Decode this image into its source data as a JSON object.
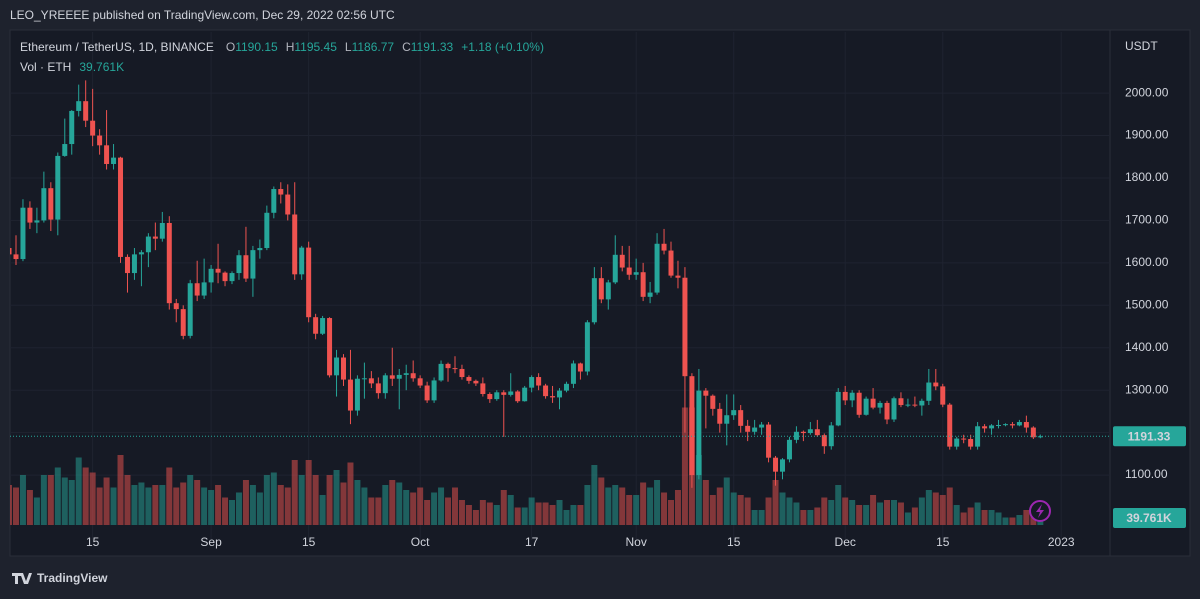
{
  "header": {
    "publisher": "LEO_YREEEE published on TradingView.com, Dec 29, 2022 02:56 UTC"
  },
  "chart_data": {
    "type": "candlestick",
    "symbol": "Ethereum / TetherUS, 1D, BINANCE",
    "legend_labels": [
      "O",
      "H",
      "L",
      "C"
    ],
    "change": "+1.18 (+0.10%)",
    "volume_title": "Vol · ETH",
    "volume_last_label": "39.761K",
    "currency": "USDT",
    "up_color": "#26a69a",
    "down_color": "#ef5350",
    "grid": true,
    "ylim": [
      947,
      2144
    ],
    "yticks": [
      {
        "value": 1100,
        "label": "1100.00"
      },
      {
        "value": 1200,
        "label": "1200.00"
      },
      {
        "value": 1300,
        "label": "1300.00"
      },
      {
        "value": 1400,
        "label": "1400.00"
      },
      {
        "value": 1500,
        "label": "1500.00"
      },
      {
        "value": 1600,
        "label": "1600.00"
      },
      {
        "value": 1700,
        "label": "1700.00"
      },
      {
        "value": 1800,
        "label": "1800.00"
      },
      {
        "value": 1900,
        "label": "1900.00"
      },
      {
        "value": 2000,
        "label": "2000.00"
      }
    ],
    "xlim": [
      0.14,
      158
    ],
    "xticks": [
      {
        "value": 12,
        "label": "15"
      },
      {
        "value": 29,
        "label": "Sep"
      },
      {
        "value": 43,
        "label": "15"
      },
      {
        "value": 59,
        "label": "Oct"
      },
      {
        "value": 75,
        "label": "17"
      },
      {
        "value": 90,
        "label": "Nov"
      },
      {
        "value": 104,
        "label": "15"
      },
      {
        "value": 120,
        "label": "Dec"
      },
      {
        "value": 134,
        "label": "15"
      },
      {
        "value": 151,
        "label": "2023"
      }
    ],
    "volume_lim": [
      0,
      1000000
    ],
    "candles": [
      [
        1635,
        1660,
        1605,
        1620
      ],
      [
        1620,
        1665,
        1595,
        1609
      ],
      [
        1609,
        1750,
        1604,
        1730
      ],
      [
        1730,
        1745,
        1680,
        1695
      ],
      [
        1695,
        1730,
        1670,
        1700
      ],
      [
        1700,
        1815,
        1695,
        1776
      ],
      [
        1776,
        1790,
        1675,
        1702
      ],
      [
        1702,
        1860,
        1665,
        1852
      ],
      [
        1852,
        1940,
        1850,
        1880
      ],
      [
        1880,
        1960,
        1855,
        1958
      ],
      [
        1958,
        2020,
        1945,
        1981
      ],
      [
        1981,
        2030,
        1920,
        1935
      ],
      [
        1935,
        2010,
        1875,
        1900
      ],
      [
        1900,
        1915,
        1855,
        1877
      ],
      [
        1877,
        1960,
        1820,
        1833
      ],
      [
        1833,
        1880,
        1820,
        1848
      ],
      [
        1848,
        1850,
        1600,
        1614
      ],
      [
        1614,
        1620,
        1530,
        1576
      ],
      [
        1576,
        1635,
        1560,
        1620
      ],
      [
        1620,
        1630,
        1545,
        1625
      ],
      [
        1625,
        1670,
        1590,
        1662
      ],
      [
        1662,
        1695,
        1630,
        1657
      ],
      [
        1657,
        1720,
        1650,
        1694
      ],
      [
        1694,
        1710,
        1490,
        1505
      ],
      [
        1505,
        1515,
        1460,
        1491
      ],
      [
        1491,
        1500,
        1420,
        1428
      ],
      [
        1428,
        1560,
        1422,
        1552
      ],
      [
        1552,
        1605,
        1510,
        1523
      ],
      [
        1523,
        1610,
        1515,
        1554
      ],
      [
        1554,
        1595,
        1530,
        1586
      ],
      [
        1586,
        1645,
        1552,
        1577
      ],
      [
        1577,
        1580,
        1545,
        1557
      ],
      [
        1557,
        1580,
        1550,
        1576
      ],
      [
        1576,
        1630,
        1560,
        1618
      ],
      [
        1618,
        1685,
        1555,
        1563
      ],
      [
        1563,
        1640,
        1520,
        1630
      ],
      [
        1630,
        1655,
        1610,
        1635
      ],
      [
        1635,
        1735,
        1630,
        1718
      ],
      [
        1718,
        1780,
        1705,
        1774
      ],
      [
        1774,
        1790,
        1740,
        1761
      ],
      [
        1761,
        1785,
        1700,
        1714
      ],
      [
        1714,
        1790,
        1560,
        1573
      ],
      [
        1573,
        1640,
        1560,
        1636
      ],
      [
        1636,
        1650,
        1460,
        1472
      ],
      [
        1472,
        1480,
        1420,
        1433
      ],
      [
        1433,
        1475,
        1430,
        1470
      ],
      [
        1470,
        1472,
        1330,
        1335
      ],
      [
        1335,
        1395,
        1285,
        1377
      ],
      [
        1377,
        1385,
        1310,
        1325
      ],
      [
        1325,
        1395,
        1220,
        1252
      ],
      [
        1252,
        1335,
        1240,
        1327
      ],
      [
        1327,
        1365,
        1280,
        1328
      ],
      [
        1328,
        1345,
        1305,
        1316
      ],
      [
        1316,
        1330,
        1280,
        1293
      ],
      [
        1293,
        1340,
        1280,
        1335
      ],
      [
        1335,
        1400,
        1310,
        1327
      ],
      [
        1327,
        1350,
        1255,
        1336
      ],
      [
        1336,
        1360,
        1300,
        1340
      ],
      [
        1340,
        1370,
        1320,
        1328
      ],
      [
        1328,
        1335,
        1305,
        1311
      ],
      [
        1311,
        1320,
        1270,
        1276
      ],
      [
        1276,
        1330,
        1270,
        1323
      ],
      [
        1323,
        1370,
        1320,
        1362
      ],
      [
        1362,
        1365,
        1320,
        1352
      ],
      [
        1352,
        1380,
        1340,
        1350
      ],
      [
        1350,
        1360,
        1325,
        1331
      ],
      [
        1331,
        1335,
        1315,
        1322
      ],
      [
        1322,
        1325,
        1310,
        1316
      ],
      [
        1316,
        1330,
        1285,
        1291
      ],
      [
        1291,
        1295,
        1270,
        1279
      ],
      [
        1279,
        1300,
        1275,
        1295
      ],
      [
        1295,
        1300,
        1190,
        1289
      ],
      [
        1289,
        1340,
        1285,
        1297
      ],
      [
        1297,
        1300,
        1270,
        1274
      ],
      [
        1274,
        1310,
        1273,
        1306
      ],
      [
        1306,
        1335,
        1295,
        1331
      ],
      [
        1331,
        1340,
        1300,
        1311
      ],
      [
        1311,
        1315,
        1280,
        1286
      ],
      [
        1286,
        1310,
        1270,
        1283
      ],
      [
        1283,
        1305,
        1255,
        1299
      ],
      [
        1299,
        1320,
        1295,
        1315
      ],
      [
        1315,
        1370,
        1305,
        1363
      ],
      [
        1363,
        1365,
        1325,
        1344
      ],
      [
        1344,
        1465,
        1335,
        1460
      ],
      [
        1460,
        1590,
        1455,
        1564
      ],
      [
        1564,
        1590,
        1505,
        1514
      ],
      [
        1514,
        1560,
        1490,
        1554
      ],
      [
        1554,
        1665,
        1550,
        1619
      ],
      [
        1619,
        1640,
        1580,
        1589
      ],
      [
        1589,
        1640,
        1560,
        1572
      ],
      [
        1572,
        1610,
        1560,
        1578
      ],
      [
        1578,
        1600,
        1510,
        1520
      ],
      [
        1520,
        1555,
        1505,
        1530
      ],
      [
        1530,
        1670,
        1525,
        1645
      ],
      [
        1645,
        1680,
        1620,
        1629
      ],
      [
        1629,
        1650,
        1565,
        1570
      ],
      [
        1570,
        1605,
        1540,
        1565
      ],
      [
        1565,
        1590,
        1200,
        1333
      ],
      [
        1333,
        1340,
        1070,
        1100
      ],
      [
        1100,
        1350,
        1090,
        1299
      ],
      [
        1299,
        1305,
        1210,
        1287
      ],
      [
        1287,
        1290,
        1240,
        1256
      ],
      [
        1256,
        1270,
        1200,
        1221
      ],
      [
        1221,
        1290,
        1170,
        1241
      ],
      [
        1241,
        1290,
        1230,
        1253
      ],
      [
        1253,
        1265,
        1200,
        1216
      ],
      [
        1216,
        1230,
        1180,
        1202
      ],
      [
        1202,
        1230,
        1195,
        1212
      ],
      [
        1212,
        1225,
        1195,
        1219
      ],
      [
        1219,
        1225,
        1130,
        1141
      ],
      [
        1141,
        1145,
        1075,
        1108
      ],
      [
        1108,
        1140,
        1090,
        1137
      ],
      [
        1137,
        1190,
        1130,
        1183
      ],
      [
        1183,
        1215,
        1175,
        1202
      ],
      [
        1202,
        1205,
        1180,
        1199
      ],
      [
        1199,
        1225,
        1195,
        1208
      ],
      [
        1208,
        1230,
        1190,
        1194
      ],
      [
        1194,
        1198,
        1150,
        1168
      ],
      [
        1168,
        1225,
        1160,
        1217
      ],
      [
        1217,
        1305,
        1215,
        1296
      ],
      [
        1296,
        1310,
        1265,
        1276
      ],
      [
        1276,
        1300,
        1260,
        1294
      ],
      [
        1294,
        1300,
        1235,
        1242
      ],
      [
        1242,
        1285,
        1240,
        1280
      ],
      [
        1280,
        1305,
        1255,
        1259
      ],
      [
        1259,
        1275,
        1245,
        1270
      ],
      [
        1270,
        1275,
        1220,
        1231
      ],
      [
        1231,
        1285,
        1225,
        1281
      ],
      [
        1281,
        1295,
        1260,
        1265
      ],
      [
        1265,
        1280,
        1260,
        1266
      ],
      [
        1266,
        1285,
        1260,
        1264
      ],
      [
        1264,
        1280,
        1240,
        1275
      ],
      [
        1275,
        1350,
        1265,
        1318
      ],
      [
        1318,
        1350,
        1300,
        1309
      ],
      [
        1309,
        1315,
        1260,
        1266
      ],
      [
        1266,
        1270,
        1160,
        1167
      ],
      [
        1167,
        1190,
        1160,
        1186
      ],
      [
        1186,
        1195,
        1175,
        1185
      ],
      [
        1185,
        1195,
        1160,
        1167
      ],
      [
        1167,
        1225,
        1160,
        1215
      ],
      [
        1215,
        1220,
        1200,
        1210
      ],
      [
        1210,
        1220,
        1195,
        1217
      ],
      [
        1217,
        1230,
        1210,
        1218
      ],
      [
        1218,
        1222,
        1215,
        1220
      ],
      [
        1220,
        1225,
        1210,
        1217
      ],
      [
        1217,
        1230,
        1215,
        1225
      ],
      [
        1225,
        1240,
        1200,
        1212
      ],
      [
        1212,
        1215,
        1185,
        1189
      ],
      [
        1190.15,
        1195.45,
        1186.77,
        1191.33
      ]
    ],
    "volume": [
      160000,
      150000,
      200000,
      140000,
      110000,
      200000,
      200000,
      230000,
      190000,
      180000,
      270000,
      230000,
      210000,
      150000,
      190000,
      150000,
      280000,
      200000,
      160000,
      170000,
      150000,
      160000,
      160000,
      230000,
      150000,
      170000,
      200000,
      180000,
      150000,
      140000,
      160000,
      110000,
      100000,
      130000,
      180000,
      160000,
      130000,
      200000,
      210000,
      160000,
      150000,
      260000,
      200000,
      260000,
      200000,
      120000,
      200000,
      220000,
      170000,
      250000,
      180000,
      150000,
      110000,
      110000,
      160000,
      180000,
      170000,
      140000,
      130000,
      150000,
      100000,
      130000,
      150000,
      110000,
      150000,
      100000,
      80000,
      60000,
      100000,
      90000,
      80000,
      140000,
      120000,
      70000,
      70000,
      110000,
      90000,
      90000,
      80000,
      100000,
      60000,
      80000,
      80000,
      160000,
      240000,
      190000,
      150000,
      160000,
      150000,
      120000,
      120000,
      170000,
      150000,
      180000,
      130000,
      100000,
      140000,
      470000,
      470000,
      280000,
      180000,
      120000,
      150000,
      190000,
      130000,
      120000,
      110000,
      60000,
      60000,
      110000,
      180000,
      130000,
      110000,
      90000,
      60000,
      60000,
      70000,
      110000,
      100000,
      160000,
      110000,
      100000,
      80000,
      80000,
      120000,
      90000,
      100000,
      100000,
      90000,
      50000,
      70000,
      110000,
      140000,
      130000,
      120000,
      150000,
      80000,
      50000,
      70000,
      90000,
      60000,
      60000,
      50000,
      30000,
      30000,
      40000,
      60000,
      50000,
      39761
    ]
  },
  "footer": {
    "brand": "TradingView"
  }
}
